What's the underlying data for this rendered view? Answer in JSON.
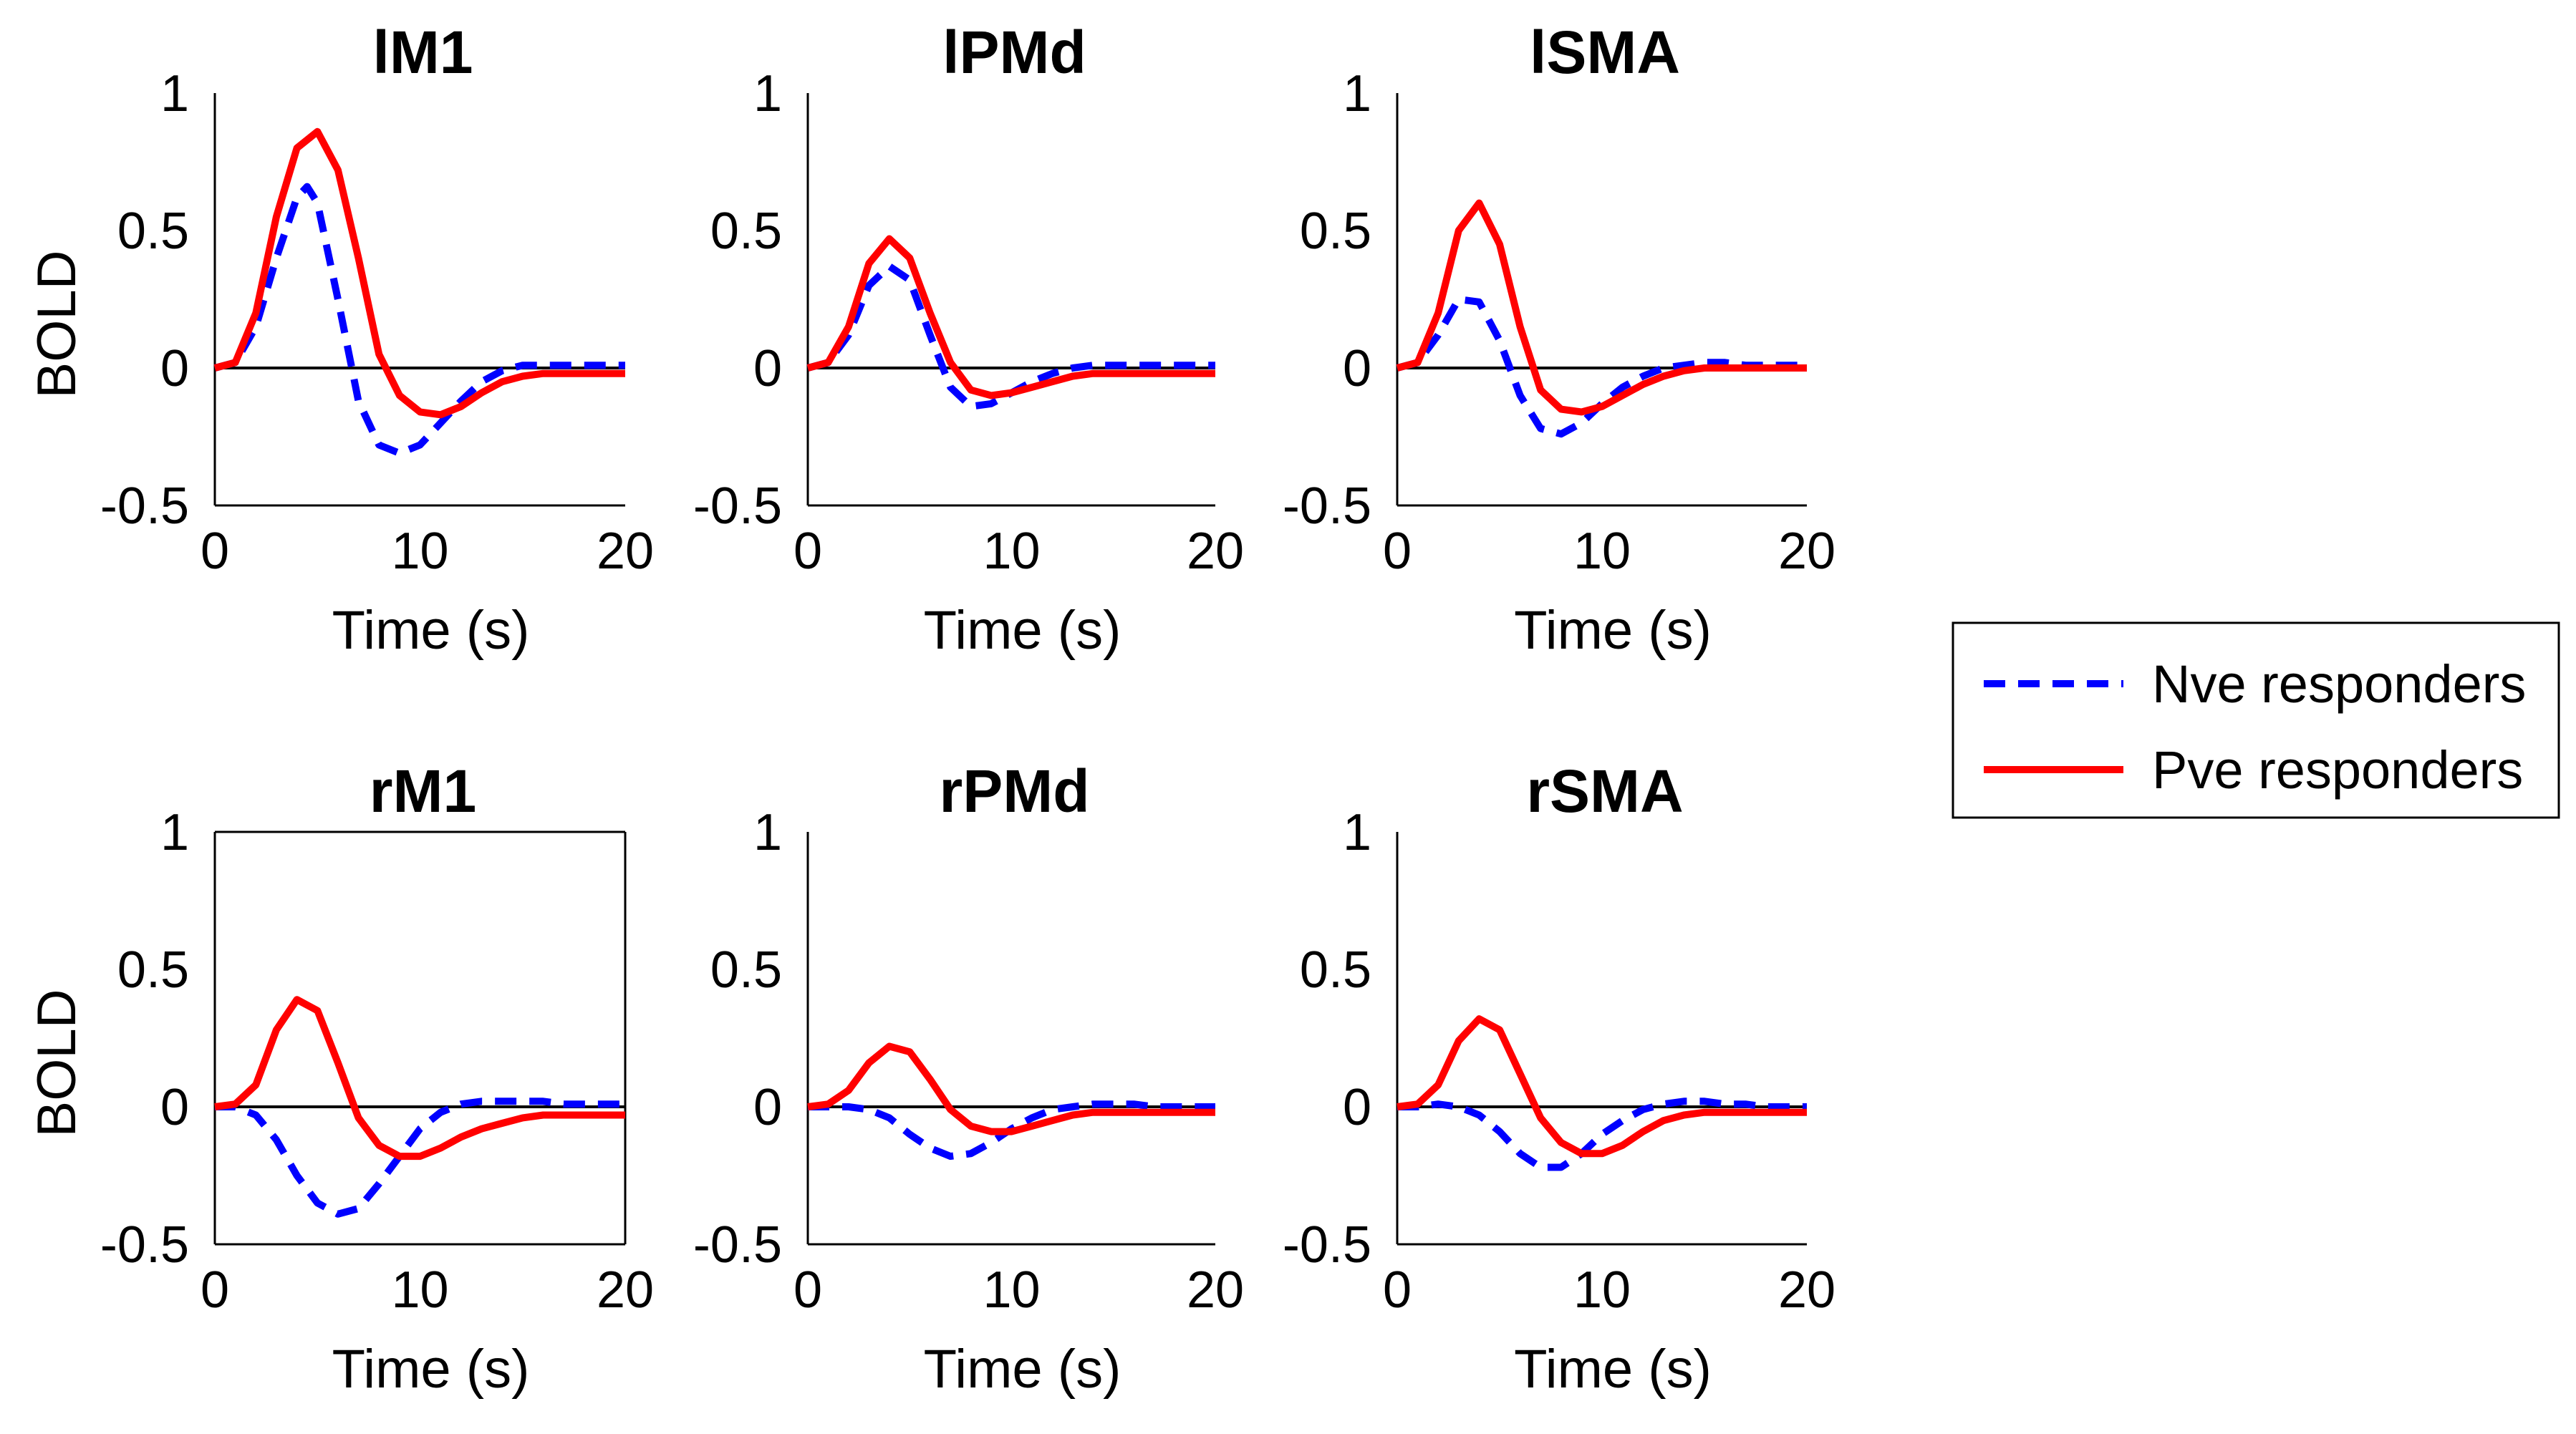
{
  "legend": {
    "position": "right",
    "entries": [
      {
        "name": "Nve responders",
        "color": "#0000ff",
        "style": "dashed"
      },
      {
        "name": "Pve responders",
        "color": "#ff0000",
        "style": "solid"
      }
    ]
  },
  "chart_data": [
    {
      "type": "line",
      "title": "lM1",
      "xlabel": "Time (s)",
      "ylabel": "BOLD",
      "xlim": [
        0,
        20
      ],
      "ylim": [
        -0.5,
        1
      ],
      "xticks": [
        "0",
        "10",
        "20"
      ],
      "yticks": [
        "-0.5",
        "0",
        "0.5",
        "1"
      ],
      "series": [
        {
          "name": "Nve responders",
          "color": "#0000ff",
          "style": "dashed",
          "x": [
            0,
            1,
            2,
            3,
            4,
            4.5,
            5,
            6,
            7,
            8,
            9,
            10,
            11,
            12,
            13,
            14,
            15,
            16,
            17,
            18,
            19,
            20
          ],
          "y": [
            0,
            0.02,
            0.15,
            0.4,
            0.62,
            0.66,
            0.6,
            0.25,
            -0.12,
            -0.28,
            -0.31,
            -0.28,
            -0.2,
            -0.12,
            -0.05,
            -0.01,
            0.01,
            0.01,
            0.01,
            0.01,
            0.01,
            0.01
          ]
        },
        {
          "name": "Pve responders",
          "color": "#ff0000",
          "style": "solid",
          "x": [
            0,
            1,
            2,
            3,
            4,
            5,
            6,
            7,
            8,
            9,
            10,
            11,
            12,
            13,
            14,
            15,
            16,
            17,
            18,
            19,
            20
          ],
          "y": [
            0,
            0.02,
            0.2,
            0.55,
            0.8,
            0.86,
            0.72,
            0.4,
            0.05,
            -0.1,
            -0.16,
            -0.17,
            -0.14,
            -0.09,
            -0.05,
            -0.03,
            -0.02,
            -0.02,
            -0.02,
            -0.02,
            -0.02
          ]
        }
      ]
    },
    {
      "type": "line",
      "title": "lPMd",
      "xlabel": "Time (s)",
      "ylabel": "",
      "xlim": [
        0,
        20
      ],
      "ylim": [
        -0.5,
        1
      ],
      "xticks": [
        "0",
        "10",
        "20"
      ],
      "yticks": [
        "-0.5",
        "0",
        "0.5",
        "1"
      ],
      "series": [
        {
          "name": "Nve responders",
          "color": "#0000ff",
          "style": "dashed",
          "x": [
            0,
            1,
            2,
            3,
            4,
            5,
            6,
            7,
            8,
            9,
            10,
            11,
            12,
            13,
            14,
            15,
            16,
            17,
            18,
            19,
            20
          ],
          "y": [
            0,
            0.02,
            0.12,
            0.3,
            0.37,
            0.32,
            0.12,
            -0.07,
            -0.14,
            -0.13,
            -0.09,
            -0.05,
            -0.02,
            0,
            0.01,
            0.01,
            0.01,
            0.01,
            0.01,
            0.01,
            0.01
          ]
        },
        {
          "name": "Pve responders",
          "color": "#ff0000",
          "style": "solid",
          "x": [
            0,
            1,
            2,
            3,
            4,
            5,
            6,
            7,
            8,
            9,
            10,
            11,
            12,
            13,
            14,
            15,
            16,
            17,
            18,
            19,
            20
          ],
          "y": [
            0,
            0.02,
            0.15,
            0.38,
            0.47,
            0.4,
            0.2,
            0.02,
            -0.08,
            -0.1,
            -0.09,
            -0.07,
            -0.05,
            -0.03,
            -0.02,
            -0.02,
            -0.02,
            -0.02,
            -0.02,
            -0.02,
            -0.02
          ]
        }
      ]
    },
    {
      "type": "line",
      "title": "lSMA",
      "xlabel": "Time (s)",
      "ylabel": "",
      "xlim": [
        0,
        20
      ],
      "ylim": [
        -0.5,
        1
      ],
      "xticks": [
        "0",
        "10",
        "20"
      ],
      "yticks": [
        "-0.5",
        "0",
        "0.5",
        "1"
      ],
      "series": [
        {
          "name": "Nve responders",
          "color": "#0000ff",
          "style": "dashed",
          "x": [
            0,
            1,
            2,
            3,
            4,
            5,
            6,
            7,
            8,
            9,
            10,
            11,
            12,
            13,
            14,
            15,
            16,
            17,
            18,
            19,
            20
          ],
          "y": [
            0,
            0.02,
            0.12,
            0.25,
            0.24,
            0.1,
            -0.1,
            -0.22,
            -0.24,
            -0.2,
            -0.13,
            -0.07,
            -0.03,
            0,
            0.01,
            0.02,
            0.02,
            0.01,
            0.01,
            0.01,
            0.01
          ]
        },
        {
          "name": "Pve responders",
          "color": "#ff0000",
          "style": "solid",
          "x": [
            0,
            1,
            2,
            3,
            4,
            5,
            6,
            7,
            8,
            9,
            10,
            11,
            12,
            13,
            14,
            15,
            16,
            17,
            18,
            19,
            20
          ],
          "y": [
            0,
            0.02,
            0.2,
            0.5,
            0.6,
            0.45,
            0.15,
            -0.08,
            -0.15,
            -0.16,
            -0.14,
            -0.1,
            -0.06,
            -0.03,
            -0.01,
            0,
            0,
            0,
            0,
            0,
            0
          ]
        }
      ]
    },
    {
      "type": "line",
      "title": "rM1",
      "xlabel": "Time (s)",
      "ylabel": "BOLD",
      "xlim": [
        0,
        20
      ],
      "ylim": [
        -0.5,
        1
      ],
      "xticks": [
        "0",
        "10",
        "20"
      ],
      "yticks": [
        "-0.5",
        "0",
        "0.5",
        "1"
      ],
      "series": [
        {
          "name": "Nve responders",
          "color": "#0000ff",
          "style": "dashed",
          "x": [
            0,
            1,
            2,
            3,
            4,
            5,
            6,
            7,
            8,
            9,
            10,
            11,
            12,
            13,
            14,
            15,
            16,
            17,
            18,
            19,
            20
          ],
          "y": [
            0,
            0,
            -0.03,
            -0.12,
            -0.25,
            -0.35,
            -0.39,
            -0.37,
            -0.28,
            -0.18,
            -0.08,
            -0.02,
            0.01,
            0.02,
            0.02,
            0.02,
            0.02,
            0.01,
            0.01,
            0.01,
            0.01
          ]
        },
        {
          "name": "Pve responders",
          "color": "#ff0000",
          "style": "solid",
          "x": [
            0,
            1,
            2,
            3,
            4,
            5,
            6,
            7,
            8,
            9,
            10,
            11,
            12,
            13,
            14,
            15,
            16,
            17,
            18,
            19,
            20
          ],
          "y": [
            0,
            0.01,
            0.08,
            0.28,
            0.39,
            0.35,
            0.16,
            -0.04,
            -0.14,
            -0.18,
            -0.18,
            -0.15,
            -0.11,
            -0.08,
            -0.06,
            -0.04,
            -0.03,
            -0.03,
            -0.03,
            -0.03,
            -0.03
          ]
        }
      ]
    },
    {
      "type": "line",
      "title": "rPMd",
      "xlabel": "Time (s)",
      "ylabel": "",
      "xlim": [
        0,
        20
      ],
      "ylim": [
        -0.5,
        1
      ],
      "xticks": [
        "0",
        "10",
        "20"
      ],
      "yticks": [
        "-0.5",
        "0",
        "0.5",
        "1"
      ],
      "series": [
        {
          "name": "Nve responders",
          "color": "#0000ff",
          "style": "dashed",
          "x": [
            0,
            1,
            2,
            3,
            4,
            5,
            6,
            7,
            8,
            9,
            10,
            11,
            12,
            13,
            14,
            15,
            16,
            17,
            18,
            19,
            20
          ],
          "y": [
            0,
            0,
            0,
            -0.01,
            -0.04,
            -0.1,
            -0.15,
            -0.18,
            -0.17,
            -0.13,
            -0.08,
            -0.04,
            -0.01,
            0,
            0.01,
            0.01,
            0.01,
            0,
            0,
            0,
            0
          ]
        },
        {
          "name": "Pve responders",
          "color": "#ff0000",
          "style": "solid",
          "x": [
            0,
            1,
            2,
            3,
            4,
            5,
            6,
            7,
            8,
            9,
            10,
            11,
            12,
            13,
            14,
            15,
            16,
            17,
            18,
            19,
            20
          ],
          "y": [
            0,
            0.01,
            0.06,
            0.16,
            0.22,
            0.2,
            0.1,
            -0.01,
            -0.07,
            -0.09,
            -0.09,
            -0.07,
            -0.05,
            -0.03,
            -0.02,
            -0.02,
            -0.02,
            -0.02,
            -0.02,
            -0.02,
            -0.02
          ]
        }
      ]
    },
    {
      "type": "line",
      "title": "rSMA",
      "xlabel": "Time (s)",
      "ylabel": "",
      "xlim": [
        0,
        20
      ],
      "ylim": [
        -0.5,
        1
      ],
      "xticks": [
        "0",
        "10",
        "20"
      ],
      "yticks": [
        "-0.5",
        "0",
        "0.5",
        "1"
      ],
      "series": [
        {
          "name": "Nve responders",
          "color": "#0000ff",
          "style": "dashed",
          "x": [
            0,
            1,
            2,
            3,
            4,
            5,
            6,
            7,
            8,
            9,
            10,
            11,
            12,
            13,
            14,
            15,
            16,
            17,
            18,
            19,
            20
          ],
          "y": [
            0,
            0,
            0.01,
            0,
            -0.03,
            -0.09,
            -0.17,
            -0.22,
            -0.22,
            -0.17,
            -0.1,
            -0.05,
            -0.01,
            0.01,
            0.02,
            0.02,
            0.01,
            0.01,
            0,
            0,
            0
          ]
        },
        {
          "name": "Pve responders",
          "color": "#ff0000",
          "style": "solid",
          "x": [
            0,
            1,
            2,
            3,
            4,
            5,
            6,
            7,
            8,
            9,
            10,
            11,
            12,
            13,
            14,
            15,
            16,
            17,
            18,
            19,
            20
          ],
          "y": [
            0,
            0.01,
            0.08,
            0.24,
            0.32,
            0.28,
            0.12,
            -0.04,
            -0.13,
            -0.17,
            -0.17,
            -0.14,
            -0.09,
            -0.05,
            -0.03,
            -0.02,
            -0.02,
            -0.02,
            -0.02,
            -0.02,
            -0.02
          ]
        }
      ]
    }
  ]
}
